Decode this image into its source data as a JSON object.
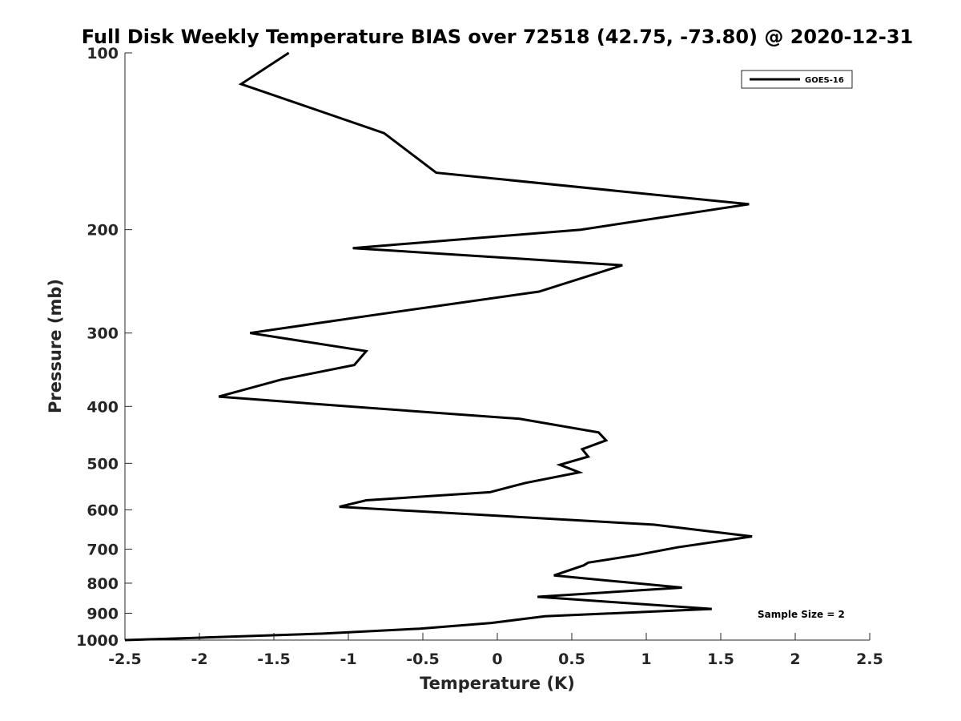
{
  "chart_data": {
    "type": "line",
    "title": "Full Disk Weekly Temperature BIAS over 72518 (42.75, -73.80) @ 2020-12-31",
    "xlabel": "Temperature (K)",
    "ylabel": "Pressure (mb)",
    "xlim": [
      -2.5,
      2.5
    ],
    "ylim": [
      100,
      1000
    ],
    "yscale": "log",
    "y_reversed": true,
    "grid": false,
    "legend_position": "top-right",
    "x_ticks": [
      -2.5,
      -2,
      -1.5,
      -1,
      -0.5,
      0,
      0.5,
      1,
      1.5,
      2,
      2.5
    ],
    "x_tick_labels": [
      "-2.5",
      "-2",
      "-1.5",
      "-1",
      "-0.5",
      "0",
      "0.5",
      "1",
      "1.5",
      "2",
      "2.5"
    ],
    "y_ticks": [
      100,
      200,
      300,
      400,
      500,
      600,
      700,
      800,
      900,
      1000
    ],
    "y_tick_labels": [
      "100",
      "200",
      "300",
      "400",
      "500",
      "600",
      "700",
      "800",
      "900",
      "1000"
    ],
    "series": [
      {
        "name": "GOES-16",
        "color": "#000000",
        "x": [
          -1.4,
          -1.72,
          -0.76,
          -0.41,
          1.69,
          0.56,
          -0.97,
          0.84,
          0.28,
          -0.85,
          -1.66,
          -0.88,
          -0.96,
          -1.45,
          -1.87,
          -1.0,
          0.15,
          0.68,
          0.73,
          0.57,
          0.61,
          0.42,
          0.55,
          0.19,
          -0.05,
          -0.88,
          -1.06,
          1.05,
          1.71,
          1.21,
          0.94,
          0.61,
          0.58,
          0.38,
          0.86,
          1.24,
          0.68,
          0.27,
          0.76,
          1.44,
          0.32,
          -0.04,
          -0.52,
          -1.17,
          -1.96,
          -2.5
        ],
        "y": [
          100,
          113,
          137,
          160,
          181,
          200,
          215,
          230,
          255,
          280,
          300,
          322,
          340,
          360,
          385,
          400,
          420,
          443,
          457,
          473,
          487,
          503,
          518,
          540,
          560,
          578,
          593,
          636,
          666,
          695,
          716,
          738,
          746,
          776,
          797,
          814,
          831,
          844,
          861,
          885,
          911,
          935,
          956,
          975,
          990,
          1000
        ]
      }
    ],
    "legend": [
      "GOES-16"
    ],
    "annotations": [
      "Sample Size = 2"
    ]
  }
}
